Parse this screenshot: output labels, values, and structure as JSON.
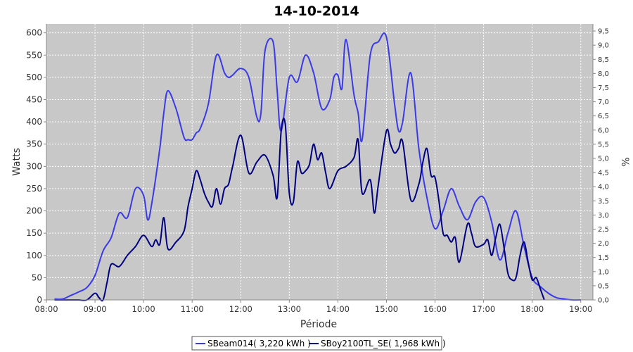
{
  "chart_data": {
    "type": "line",
    "title": "14-10-2014",
    "xlabel": "Période",
    "ylabel": "Watts",
    "y2label": "%",
    "x_range": [
      "08:00",
      "19:15"
    ],
    "ylim": [
      0,
      620
    ],
    "y2lim": [
      0,
      9.75
    ],
    "x_ticks": [
      "08:00",
      "09:00",
      "10:00",
      "11:00",
      "12:00",
      "13:00",
      "14:00",
      "15:00",
      "16:00",
      "17:00",
      "18:00",
      "19:00"
    ],
    "y_ticks": [
      0,
      50,
      100,
      150,
      200,
      250,
      300,
      350,
      400,
      450,
      500,
      550,
      600
    ],
    "y2_ticks": [
      "0,0",
      "0,5",
      "1,0",
      "1,5",
      "2,0",
      "2,5",
      "3,0",
      "3,5",
      "4,0",
      "4,5",
      "5,0",
      "5,5",
      "6,0",
      "6,5",
      "7,0",
      "7,5",
      "8,0",
      "8,5",
      "9,0",
      "9,5"
    ],
    "grid": true,
    "legend_position": "bottom",
    "plot_background": "#c8c8c8",
    "series": [
      {
        "name": "SBeam014( 3,220 kWh )",
        "color": "#3a3ae6",
        "x": [
          "08:10",
          "08:20",
          "08:30",
          "08:40",
          "08:50",
          "09:00",
          "09:10",
          "09:20",
          "09:30",
          "09:40",
          "09:50",
          "10:00",
          "10:05",
          "10:10",
          "10:20",
          "10:25",
          "10:30",
          "10:40",
          "10:50",
          "10:55",
          "11:00",
          "11:05",
          "11:10",
          "11:20",
          "11:30",
          "11:40",
          "11:45",
          "11:50",
          "12:00",
          "12:10",
          "12:20",
          "12:25",
          "12:30",
          "12:40",
          "12:45",
          "12:50",
          "13:00",
          "13:10",
          "13:20",
          "13:30",
          "13:40",
          "13:50",
          "13:55",
          "14:00",
          "14:05",
          "14:10",
          "14:20",
          "14:25",
          "14:30",
          "14:40",
          "14:50",
          "15:00",
          "15:10",
          "15:15",
          "15:20",
          "15:30",
          "15:40",
          "15:50",
          "16:00",
          "16:10",
          "16:20",
          "16:30",
          "16:40",
          "16:50",
          "17:00",
          "17:10",
          "17:20",
          "17:30",
          "17:40",
          "17:50",
          "18:00",
          "18:10",
          "18:20",
          "18:30",
          "18:40",
          "18:50",
          "19:00"
        ],
        "values": [
          2,
          2,
          10,
          18,
          28,
          55,
          110,
          140,
          195,
          185,
          250,
          235,
          180,
          215,
          340,
          420,
          470,
          430,
          365,
          360,
          360,
          375,
          385,
          440,
          550,
          510,
          500,
          505,
          520,
          500,
          410,
          420,
          560,
          580,
          470,
          380,
          500,
          490,
          550,
          510,
          430,
          450,
          500,
          505,
          475,
          585,
          460,
          420,
          360,
          550,
          580,
          590,
          440,
          380,
          400,
          510,
          340,
          230,
          160,
          200,
          250,
          210,
          180,
          220,
          230,
          175,
          90,
          150,
          200,
          120,
          50,
          30,
          15,
          5,
          2,
          0,
          0
        ]
      },
      {
        "name": "SBoy2100TL_SE( 1,968 kWh )",
        "color": "#000080",
        "x": [
          "08:10",
          "08:20",
          "08:30",
          "08:40",
          "08:50",
          "09:00",
          "09:05",
          "09:10",
          "09:15",
          "09:20",
          "09:30",
          "09:40",
          "09:50",
          "10:00",
          "10:10",
          "10:15",
          "10:20",
          "10:25",
          "10:30",
          "10:40",
          "10:50",
          "10:55",
          "11:00",
          "11:05",
          "11:10",
          "11:15",
          "11:20",
          "11:25",
          "11:30",
          "11:35",
          "11:40",
          "11:45",
          "11:50",
          "12:00",
          "12:10",
          "12:20",
          "12:30",
          "12:40",
          "12:45",
          "12:50",
          "12:55",
          "13:00",
          "13:05",
          "13:10",
          "13:15",
          "13:20",
          "13:25",
          "13:30",
          "13:35",
          "13:40",
          "13:45",
          "13:50",
          "14:00",
          "14:10",
          "14:20",
          "14:25",
          "14:30",
          "14:40",
          "14:45",
          "14:50",
          "15:00",
          "15:05",
          "15:10",
          "15:15",
          "15:20",
          "15:30",
          "15:40",
          "15:45",
          "15:50",
          "15:55",
          "16:00",
          "16:05",
          "16:10",
          "16:15",
          "16:20",
          "16:25",
          "16:30",
          "16:40",
          "16:45",
          "16:50",
          "17:00",
          "17:05",
          "17:10",
          "17:15",
          "17:20",
          "17:25",
          "17:30",
          "17:35",
          "17:40",
          "17:45",
          "17:50",
          "17:55",
          "18:00",
          "18:05",
          "18:10",
          "18:15"
        ],
        "values": [
          0,
          0,
          0,
          0,
          0,
          15,
          5,
          0,
          40,
          80,
          75,
          100,
          120,
          145,
          120,
          135,
          125,
          185,
          115,
          130,
          155,
          210,
          250,
          290,
          270,
          240,
          220,
          210,
          250,
          215,
          250,
          260,
          300,
          370,
          285,
          310,
          325,
          280,
          230,
          380,
          395,
          240,
          220,
          310,
          285,
          290,
          305,
          350,
          315,
          330,
          285,
          250,
          290,
          300,
          320,
          360,
          240,
          270,
          195,
          260,
          380,
          350,
          330,
          340,
          355,
          225,
          260,
          310,
          340,
          280,
          275,
          220,
          150,
          145,
          130,
          140,
          85,
          170,
          150,
          120,
          125,
          135,
          100,
          140,
          170,
          120,
          60,
          45,
          50,
          100,
          130,
          85,
          45,
          50,
          25,
          0
        ]
      }
    ]
  }
}
